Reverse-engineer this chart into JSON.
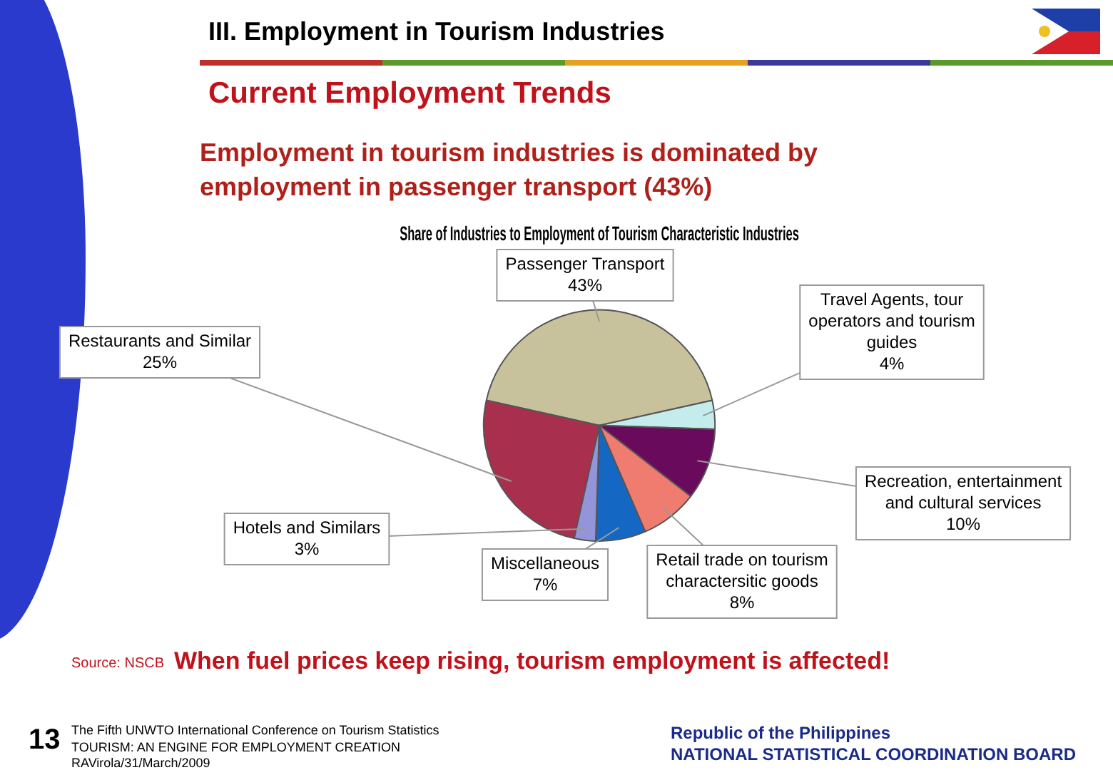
{
  "chart_data": {
    "type": "pie",
    "title": "Share of Industries to Employment of Tourism Characteristic Industries",
    "categories": [
      "Passenger Transport",
      "Travel Agents, tour operators and tourism guides",
      "Recreation, entertainment and cultural services",
      "Retail trade on tourism charactersitic goods",
      "Miscellaneous",
      "Hotels and Similars",
      "Restaurants and Similar"
    ],
    "values": [
      43,
      4,
      10,
      8,
      7,
      3,
      25
    ],
    "value_labels": [
      "43%",
      "4%",
      "10%",
      "8%",
      "7%",
      "3%",
      "25%"
    ],
    "colors": [
      "#c8c29c",
      "#c4ecec",
      "#6a0a5c",
      "#f07c70",
      "#1468c4",
      "#9494d8",
      "#a8304e"
    ],
    "annotations": [
      "III. Employment in Tourism Industries",
      "Current Employment Trends",
      "Employment in tourism industries is dominated by employment in passenger transport (43%)",
      "Source: NSCB",
      "When fuel prices keep rising, tourism employment is affected!",
      "13",
      "The Fifth UNWTO International Conference on Tourism Statistics",
      "TOURISM: AN ENGINE FOR EMPLOYMENT CREATION",
      "RAVirola/31/March/2009",
      "Republic of the Philippines",
      "NATIONAL STATISTICAL COORDINATION BOARD"
    ]
  }
}
